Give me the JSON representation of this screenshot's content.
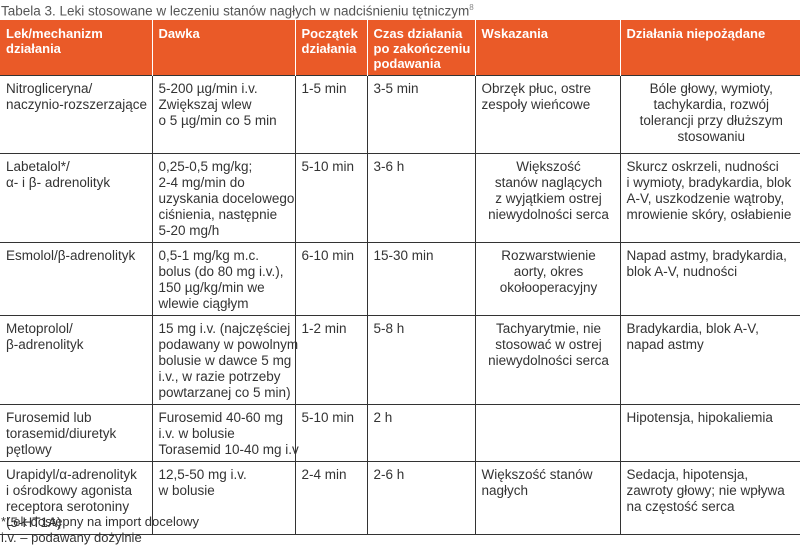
{
  "caption": {
    "text": "Tabela 3. Leki stosowane w leczeniu stanów nagłych w nadciśnieniu tętniczym",
    "ref": "8"
  },
  "headers": [
    [
      "Lek/mechanizm",
      "działania"
    ],
    [
      "Dawka"
    ],
    [
      "Początek",
      "działania"
    ],
    [
      "Czas działania",
      "po zakończeniu",
      "podawania"
    ],
    [
      "Wskazania"
    ],
    [
      "Działania niepożądane"
    ]
  ],
  "rows": [
    [
      [
        "Nitrogliceryna/",
        "naczynio-rozszerzające"
      ],
      [
        "5-200 µg/min i.v.",
        "Zwiększaj wlew",
        "o 5 µg/min co 5 min"
      ],
      [
        "1-5 min"
      ],
      [
        "3-5 min"
      ],
      [
        "Obrzęk płuc, ostre",
        "zespoły wieńcowe"
      ],
      [
        "Bóle głowy, wymioty,",
        "tachykardia, rozwój",
        "tolerancji przy dłuższym",
        "stosowaniu"
      ]
    ],
    [
      [
        "Labetalol*/",
        "α- i β- adrenolityk"
      ],
      [
        "0,25-0,5 mg/kg;",
        "2-4 mg/min do",
        "uzyskania docelowego",
        "ciśnienia, następnie",
        "5-20 mg/h"
      ],
      [
        "5-10 min"
      ],
      [
        "3-6 h"
      ],
      [
        "Większość",
        "stanów naglących",
        "z wyjątkiem ostrej",
        "niewydolności serca"
      ],
      [
        "Skurcz oskrzeli, nudności",
        "i wymioty, bradykardia, blok",
        "A-V, uszkodzenie wątroby,",
        "mrowienie skóry, osłabienie"
      ]
    ],
    [
      [
        "Esmolol/β-adrenolityk"
      ],
      [
        "0,5-1 mg/kg m.c.",
        "bolus (do 80 mg i.v.),",
        "150 µg/kg/min we",
        "wlewie ciągłym"
      ],
      [
        "6-10 min"
      ],
      [
        "15-30 min"
      ],
      [
        "Rozwarstwienie",
        "aorty, okres",
        "okołooperacyjny"
      ],
      [
        "Napad astmy, bradykardia,",
        "blok A-V, nudności"
      ]
    ],
    [
      [
        "Metoprolol/",
        "β-adrenolityk"
      ],
      [
        "15 mg i.v. (najczęściej",
        "podawany w powolnym",
        "bolusie w dawce 5 mg",
        "i.v., w razie potrzeby",
        "powtarzanej co 5 min)"
      ],
      [
        "1-2 min"
      ],
      [
        "5-8 h"
      ],
      [
        "Tachyarytmie, nie",
        "stosować w ostrej",
        "niewydolności serca"
      ],
      [
        "Bradykardia, blok A-V,",
        "napad astmy"
      ]
    ],
    [
      [
        "Furosemid lub",
        "torasemid/diuretyk",
        "pętlowy"
      ],
      [
        "Furosemid 40-60 mg",
        "i.v. w bolusie",
        "Torasemid 10-40 mg i.v"
      ],
      [
        "5-10 min"
      ],
      [
        "2 h"
      ],
      [],
      [
        "Hipotensja, hipokaliemia"
      ]
    ],
    [
      [
        "Urapidyl/α-adrenolityk",
        "i ośrodkowy agonista",
        "receptora serotoniny",
        "(5-HT1A)"
      ],
      [
        "12,5-50 mg i.v.",
        "w bolusie"
      ],
      [
        "2-4 min"
      ],
      [
        "2-6 h"
      ],
      [
        "Większość stanów",
        "nagłych"
      ],
      [
        "Sedacja, hipotensja,",
        "zawroty głowy; nie wpływa",
        "na częstość serca"
      ]
    ]
  ],
  "centered": [
    [
      false,
      false,
      false,
      false,
      false,
      true
    ],
    [
      false,
      false,
      false,
      false,
      true,
      false
    ],
    [
      false,
      false,
      false,
      false,
      true,
      false
    ],
    [
      false,
      false,
      false,
      false,
      true,
      false
    ],
    [
      false,
      false,
      false,
      false,
      false,
      false
    ],
    [
      false,
      false,
      false,
      false,
      false,
      false
    ]
  ],
  "footnotes": [
    "*Lek dostępny na import docelowy",
    "i.v. – podawany dożylnie"
  ]
}
